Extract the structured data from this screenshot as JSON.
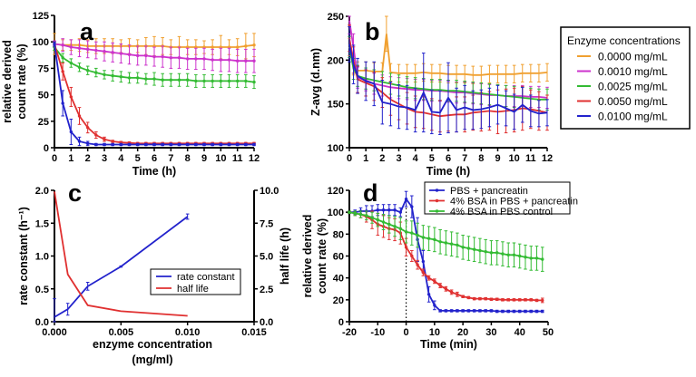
{
  "chart_data": [
    {
      "panel_label": "a",
      "type": "line",
      "xlabel": "Time (h)",
      "ylabel": [
        "relative derived",
        "count rate (%)"
      ],
      "xlim": [
        0,
        12
      ],
      "ylim": [
        0,
        125
      ],
      "xticks": [
        0,
        1,
        2,
        3,
        4,
        5,
        6,
        7,
        8,
        9,
        10,
        11,
        12
      ],
      "yticks": [
        0,
        25,
        50,
        75,
        100,
        125
      ],
      "markers": true,
      "x": [
        0,
        0.5,
        1,
        1.5,
        2,
        2.5,
        3,
        3.5,
        4,
        4.5,
        5,
        5.5,
        6,
        6.5,
        7,
        7.5,
        8,
        8.5,
        9,
        9.5,
        10,
        10.5,
        11,
        11.5,
        12
      ],
      "series": [
        {
          "legend_ref": "0.0000 mg/mL",
          "color": "#f0a030",
          "values": [
            98,
            97,
            97,
            97,
            96,
            96,
            96,
            96,
            96,
            96,
            96,
            96,
            96,
            96,
            95,
            95,
            95,
            95,
            95,
            95,
            95,
            95,
            95,
            96,
            97
          ],
          "errors": [
            10,
            5,
            5,
            6,
            6,
            7,
            7,
            7,
            6,
            7,
            6,
            8,
            9,
            8,
            7,
            10,
            7,
            7,
            6,
            7,
            11,
            7,
            8,
            12,
            11
          ]
        },
        {
          "legend_ref": "0.0010 mg/mL",
          "color": "#cc33cc",
          "values": [
            98,
            97,
            95,
            94,
            93,
            92,
            91,
            90,
            89,
            88,
            87,
            87,
            86,
            86,
            85,
            85,
            84,
            84,
            84,
            83,
            83,
            83,
            82,
            82,
            82
          ],
          "errors": [
            3,
            6,
            7,
            8,
            8,
            8,
            9,
            9,
            9,
            9,
            9,
            9,
            9,
            10,
            10,
            10,
            10,
            10,
            10,
            10,
            11,
            11,
            11,
            11,
            11
          ]
        },
        {
          "legend_ref": "0.0025 mg/mL",
          "color": "#33bb33",
          "values": [
            95,
            85,
            80,
            76,
            73,
            71,
            69,
            68,
            67,
            66,
            66,
            65,
            65,
            64,
            64,
            64,
            64,
            63,
            63,
            63,
            63,
            63,
            63,
            63,
            62
          ],
          "errors": [
            3,
            4,
            4,
            4,
            4,
            4,
            4,
            5,
            5,
            5,
            5,
            5,
            6,
            6,
            6,
            6,
            6,
            6,
            6,
            6,
            6,
            6,
            6,
            6,
            6
          ]
        },
        {
          "legend_ref": "0.0050 mg/mL",
          "color": "#e03030",
          "values": [
            98,
            72,
            48,
            30,
            19,
            12,
            8,
            6,
            5,
            4.5,
            4,
            4,
            4,
            4,
            4,
            4,
            4,
            4,
            4,
            4,
            4,
            4,
            4,
            4,
            4
          ],
          "errors": [
            2,
            8,
            9,
            8,
            5,
            3,
            2,
            1,
            1,
            1,
            1,
            1,
            1,
            1,
            1,
            1,
            1,
            1,
            1,
            1,
            1,
            1,
            1,
            1,
            1
          ]
        },
        {
          "legend_ref": "0.0100 mg/mL",
          "color": "#2222cc",
          "values": [
            98,
            42,
            15,
            6,
            4,
            3,
            3,
            3,
            3,
            3,
            3,
            3,
            3,
            3,
            3,
            3,
            3,
            3,
            3,
            3,
            3,
            3,
            3,
            3,
            3
          ],
          "errors": [
            2,
            12,
            12,
            4,
            2,
            1,
            1,
            1,
            1,
            1,
            1,
            1,
            1,
            1,
            1,
            1,
            1,
            1,
            1,
            1,
            1,
            1,
            1,
            1,
            1
          ]
        }
      ]
    },
    {
      "panel_label": "b",
      "type": "line",
      "xlabel": "Time (h)",
      "ylabel": [
        "Z-avg (d.nm)"
      ],
      "xlim": [
        0,
        12
      ],
      "ylim": [
        100,
        250
      ],
      "xticks": [
        0,
        1,
        2,
        3,
        4,
        5,
        6,
        7,
        8,
        9,
        10,
        11,
        12
      ],
      "yticks": [
        100,
        150,
        200,
        250
      ],
      "markers": false,
      "legend": {
        "title": "Enzyme concentrations",
        "placement": "right"
      },
      "x": [
        0,
        0.25,
        0.5,
        1,
        1.5,
        2,
        2.5,
        3,
        3.5,
        4,
        4.5,
        5,
        5.5,
        6,
        6.5,
        7,
        7.5,
        8,
        8.5,
        9,
        9.5,
        10,
        10.5,
        11,
        11.5,
        12
      ],
      "series": [
        {
          "name": "0.0000 mg/mL",
          "color": "#f0a030",
          "x": [
            0,
            0.25,
            0.5,
            1,
            1.5,
            2,
            2.25,
            2.5,
            3,
            3.5,
            4,
            4.5,
            5,
            5.5,
            6,
            6.5,
            7,
            7.5,
            8,
            8.5,
            9,
            9.5,
            10,
            10.5,
            11,
            11.5,
            12
          ],
          "values": [
            215,
            195,
            188,
            188,
            187,
            187,
            230,
            186,
            185,
            185,
            185,
            186,
            185,
            185,
            184,
            184,
            184,
            183,
            183,
            184,
            184,
            184,
            184,
            185,
            185,
            185,
            186
          ],
          "errors": [
            10,
            12,
            10,
            10,
            10,
            10,
            20,
            10,
            10,
            10,
            10,
            10,
            10,
            10,
            10,
            10,
            10,
            10,
            10,
            10,
            10,
            10,
            10,
            10,
            10,
            10,
            10
          ]
        },
        {
          "name": "0.0010 mg/mL",
          "color": "#cc33cc",
          "values": [
            245,
            215,
            180,
            177,
            173,
            171,
            169,
            168,
            167,
            166,
            166,
            165,
            165,
            164,
            163,
            163,
            162,
            161,
            160,
            160,
            159,
            159,
            159,
            158,
            158,
            157
          ],
          "errors": [
            15,
            15,
            12,
            12,
            12,
            12,
            12,
            12,
            12,
            12,
            12,
            12,
            12,
            12,
            12,
            12,
            12,
            12,
            12,
            12,
            12,
            12,
            12,
            12,
            12,
            12
          ]
        },
        {
          "name": "0.0025 mg/mL",
          "color": "#33bb33",
          "values": [
            215,
            190,
            182,
            179,
            177,
            175,
            173,
            171,
            169,
            168,
            167,
            166,
            166,
            165,
            165,
            164,
            163,
            162,
            161,
            160,
            159,
            158,
            157,
            156,
            155,
            155
          ],
          "errors": [
            12,
            12,
            12,
            12,
            12,
            12,
            12,
            12,
            12,
            12,
            12,
            12,
            12,
            12,
            12,
            12,
            12,
            12,
            12,
            12,
            12,
            12,
            12,
            12,
            12,
            12
          ]
        },
        {
          "name": "0.0050 mg/mL",
          "color": "#e03030",
          "values": [
            225,
            200,
            178,
            174,
            170,
            163,
            155,
            150,
            145,
            141,
            140,
            138,
            136,
            137,
            138,
            138,
            140,
            141,
            142,
            141,
            142,
            143,
            145,
            144,
            142,
            140
          ],
          "errors": [
            15,
            15,
            15,
            15,
            16,
            17,
            18,
            18,
            18,
            18,
            18,
            18,
            18,
            18,
            20,
            20,
            20,
            22,
            22,
            25,
            25,
            25,
            25,
            22,
            22,
            20
          ]
        },
        {
          "name": "0.0100 mg/mL",
          "color": "#2222cc",
          "values": [
            218,
            195,
            182,
            176,
            173,
            152,
            150,
            147,
            146,
            143,
            163,
            141,
            140,
            157,
            143,
            146,
            143,
            144,
            146,
            149,
            145,
            141,
            149,
            142,
            139,
            140
          ],
          "errors": [
            20,
            22,
            20,
            22,
            25,
            25,
            25,
            25,
            25,
            25,
            45,
            25,
            25,
            40,
            25,
            25,
            22,
            22,
            22,
            22,
            20,
            20,
            20,
            18,
            15,
            15
          ]
        }
      ]
    },
    {
      "panel_label": "c",
      "type": "line",
      "xlabel": [
        "enzyme concentration",
        "(mg/ml)"
      ],
      "ylabel": [
        "rate constant (h⁻¹)"
      ],
      "y2label": "half life (h)",
      "xlim": [
        0,
        0.015
      ],
      "ylim": [
        0,
        2.0
      ],
      "y2lim": [
        0,
        10.0
      ],
      "xticks": [
        "0.000",
        "0.005",
        "0.010",
        "0.015"
      ],
      "yticks": [
        "0.0",
        "0.5",
        "1.0",
        "1.5",
        "2.0"
      ],
      "y2ticks": [
        "0.0",
        "2.5",
        "5.0",
        "7.5",
        "10.0"
      ],
      "legend": {
        "placement": "center-right"
      },
      "x": [
        0,
        0.001,
        0.0025,
        0.005,
        0.01
      ],
      "series": [
        {
          "name": "rate constant",
          "color": "#2222cc",
          "axis": "left",
          "values": [
            0.07,
            0.19,
            0.54,
            0.84,
            1.6
          ],
          "errors": [
            0.28,
            0.09,
            0.06,
            0.01,
            0.04
          ]
        },
        {
          "name": "half life",
          "color": "#e03030",
          "axis": "right",
          "values": [
            9.9,
            3.6,
            1.25,
            0.8,
            0.45
          ]
        }
      ]
    },
    {
      "panel_label": "d",
      "type": "line",
      "xlabel": "Time (min)",
      "ylabel": [
        "relative derived",
        "count rate (%)"
      ],
      "xlim": [
        -20,
        50
      ],
      "ylim": [
        0,
        120
      ],
      "xticks": [
        -20,
        -10,
        0,
        10,
        20,
        30,
        40,
        50
      ],
      "yticks": [
        0,
        20,
        40,
        60,
        80,
        100,
        120
      ],
      "markers": true,
      "vline_x": 0,
      "legend": {
        "placement": "top-right"
      },
      "x": [
        -20,
        -18,
        -16,
        -14,
        -12,
        -10,
        -8,
        -6,
        -4,
        -2,
        0,
        2,
        4,
        6,
        8,
        10,
        12,
        14,
        16,
        18,
        20,
        22,
        24,
        26,
        28,
        30,
        32,
        34,
        36,
        38,
        40,
        42,
        44,
        46,
        48
      ],
      "series": [
        {
          "name": "PBS + pancreatin",
          "color": "#2222cc",
          "values": [
            100,
            100,
            101,
            101,
            101,
            102,
            102,
            102,
            102,
            100,
            112,
            105,
            75,
            55,
            25,
            15,
            10,
            10,
            10,
            10,
            10,
            10,
            10,
            10,
            10,
            10,
            9.5,
            9.5,
            9.5,
            9.5,
            9.5,
            9.5,
            9.5,
            9.5,
            9.5
          ],
          "errors": [
            1,
            2,
            3,
            5,
            5,
            5,
            5,
            5,
            5,
            4,
            7,
            10,
            20,
            10,
            7,
            4,
            1,
            1,
            1,
            1,
            1,
            1,
            1,
            1,
            1,
            1,
            1,
            1,
            1,
            1,
            1,
            1,
            1,
            1,
            1
          ]
        },
        {
          "name": "4% BSA in PBS + pancreatin",
          "color": "#e03030",
          "values": [
            100,
            99,
            98,
            96,
            93,
            89,
            87,
            85,
            84,
            81,
            68,
            60,
            52,
            45,
            40,
            37,
            33,
            30,
            27,
            25,
            23,
            22,
            21,
            21,
            21,
            20.5,
            20.5,
            20,
            20,
            20,
            20,
            20,
            20,
            19.5,
            19.5
          ],
          "errors": [
            1,
            2,
            3,
            5,
            8,
            10,
            10,
            10,
            10,
            10,
            8,
            5,
            4,
            3,
            2,
            2,
            2,
            2,
            2,
            2,
            1,
            1,
            1,
            1,
            1,
            1,
            1,
            1,
            1,
            1,
            1,
            1,
            1,
            1,
            2
          ]
        },
        {
          "name": "4% BSA in PBS control",
          "color": "#33bb33",
          "values": [
            100,
            99,
            98,
            97,
            95,
            93,
            91,
            89,
            87,
            85,
            82,
            81,
            79,
            77,
            76,
            75,
            73,
            72,
            71,
            70,
            68,
            67,
            66,
            65,
            64,
            63,
            63,
            62,
            61,
            61,
            60,
            59,
            58,
            58,
            57
          ],
          "errors": [
            1,
            2,
            3,
            4,
            5,
            6,
            7,
            8,
            9,
            10,
            10,
            11,
            11,
            11,
            11,
            11,
            11,
            11,
            11,
            11,
            11,
            11,
            11,
            11,
            11,
            11,
            11,
            11,
            11,
            11,
            11,
            11,
            11,
            11,
            11
          ]
        }
      ]
    }
  ]
}
